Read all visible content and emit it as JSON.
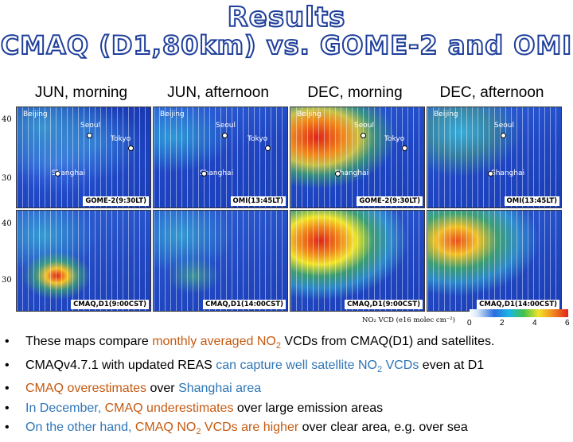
{
  "title": {
    "line1": "Results",
    "line2": "CMAQ (D1,80km) vs. GOME-2 and OMI"
  },
  "columns": [
    "JUN, morning",
    "JUN, afternoon",
    "DEC, morning",
    "DEC, afternoon"
  ],
  "latitude_labels": [
    "40",
    "30",
    "40",
    "30"
  ],
  "cities": {
    "beijing": "Beijing",
    "seoul": "Seoul",
    "tokyo": "Tokyo",
    "shanghai": "Shanghai"
  },
  "map_tags": {
    "top": [
      "GOME-2(9:30LT)",
      "OMI(13:45LT)",
      "GOME-2(9:30LT)",
      "OMI(13:45LT)"
    ],
    "bottom": [
      "CMAQ,D1(9:00CST)",
      "CMAQ,D1(14:00CST)",
      "CMAQ,D1(9:00CST)",
      "CMAQ,D1(14:00CST)"
    ]
  },
  "colorbar": {
    "label": "NO₂ VCD (e16 molec cm⁻²)",
    "ticks": [
      "0",
      "2",
      "4",
      "6"
    ]
  },
  "bullets": [
    {
      "a": "These maps compare ",
      "b": "monthly averaged NO",
      "c": "2",
      "d": " VCDs",
      "e": " from CMAQ(D1) and satellites."
    },
    {
      "a": "CMAQv4.7.1 with updated REAS ",
      "b": "can capture well satellite NO",
      "c": "2",
      "d": " VCDs",
      "e": " even at D1"
    },
    {
      "a": "CMAQ overestimates",
      "b": " over ",
      "c": "Shanghai area"
    },
    {
      "a": "In December, ",
      "b": "CMAQ underestimates",
      "c": " over large emission areas"
    },
    {
      "a": "On the other hand, ",
      "b": "CMAQ NO",
      "c": "2",
      "d": " VCDs are higher",
      "e": " over clear area, e.g. over sea"
    }
  ],
  "colors": {
    "title_stroke": "#1f3f9a",
    "highlight_orange": "#c55a11",
    "highlight_blue": "#2e75b6"
  }
}
